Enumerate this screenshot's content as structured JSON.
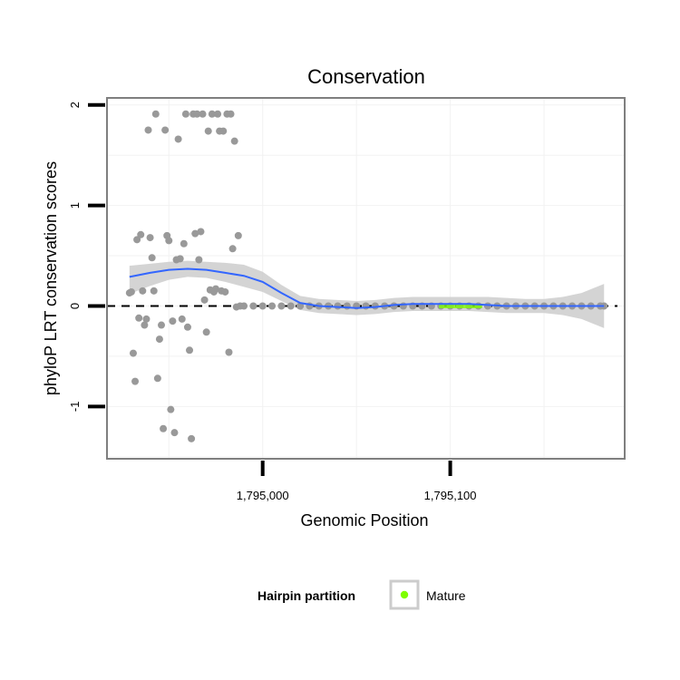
{
  "chart_data": {
    "type": "scatter",
    "title": "Conservation",
    "xlabel": "Genomic Position",
    "ylabel": "phyloP LRT conservation scores",
    "xlim": [
      1794917,
      1795193
    ],
    "ylim": [
      -1.52,
      2.07
    ],
    "x_ticks": [
      {
        "value": 1795000,
        "label": "1,795,000"
      },
      {
        "value": 1795100,
        "label": "1,795,100"
      }
    ],
    "y_ticks": [
      {
        "value": -1,
        "label": "-1"
      },
      {
        "value": 0,
        "label": "0"
      },
      {
        "value": 1,
        "label": "1"
      },
      {
        "value": 2,
        "label": "2"
      }
    ],
    "reference_line": {
      "y": 0,
      "style": "dashed",
      "color": "#000000"
    },
    "point_color": "#999999",
    "smooth_color": "#3366ff",
    "ribbon_color": "#cccccc",
    "mature_color": "#7fff00",
    "points": [
      [
        1794929,
        0.13
      ],
      [
        1794930,
        0.14
      ],
      [
        1794931,
        -0.47
      ],
      [
        1794932,
        -0.75
      ],
      [
        1794933,
        0.66
      ],
      [
        1794934,
        -0.12
      ],
      [
        1794935,
        0.71
      ],
      [
        1794936,
        0.15
      ],
      [
        1794937,
        -0.19
      ],
      [
        1794938,
        -0.13
      ],
      [
        1794939,
        1.75
      ],
      [
        1794940,
        0.68
      ],
      [
        1794941,
        0.48
      ],
      [
        1794942,
        0.15
      ],
      [
        1794943,
        1.91
      ],
      [
        1794944,
        -0.72
      ],
      [
        1794945,
        -0.33
      ],
      [
        1794946,
        -0.19
      ],
      [
        1794947,
        -1.22
      ],
      [
        1794948,
        1.75
      ],
      [
        1794949,
        0.7
      ],
      [
        1794950,
        0.65
      ],
      [
        1794951,
        -1.03
      ],
      [
        1794952,
        -0.15
      ],
      [
        1794953,
        -1.26
      ],
      [
        1794954,
        0.46
      ],
      [
        1794955,
        1.66
      ],
      [
        1794956,
        0.47
      ],
      [
        1794957,
        -0.13
      ],
      [
        1794958,
        0.62
      ],
      [
        1794959,
        1.91
      ],
      [
        1794960,
        -0.21
      ],
      [
        1794961,
        -0.44
      ],
      [
        1794962,
        -1.32
      ],
      [
        1794963,
        1.91
      ],
      [
        1794964,
        0.72
      ],
      [
        1794965,
        1.91
      ],
      [
        1794966,
        0.46
      ],
      [
        1794967,
        0.74
      ],
      [
        1794968,
        1.91
      ],
      [
        1794969,
        0.06
      ],
      [
        1794970,
        -0.26
      ],
      [
        1794971,
        1.74
      ],
      [
        1794972,
        0.16
      ],
      [
        1794973,
        1.91
      ],
      [
        1794974,
        0.14
      ],
      [
        1794975,
        0.17
      ],
      [
        1794976,
        1.91
      ],
      [
        1794977,
        1.74
      ],
      [
        1794978,
        0.15
      ],
      [
        1794979,
        1.74
      ],
      [
        1794980,
        0.14
      ],
      [
        1794981,
        1.91
      ],
      [
        1794982,
        -0.46
      ],
      [
        1794983,
        1.91
      ],
      [
        1794984,
        0.57
      ],
      [
        1794985,
        1.64
      ],
      [
        1794986,
        -0.01
      ],
      [
        1794987,
        0.7
      ],
      [
        1794988,
        0.0
      ],
      [
        1794990,
        0.0
      ],
      [
        1794995,
        0.0
      ],
      [
        1795000,
        0.0
      ],
      [
        1795005,
        0.0
      ],
      [
        1795010,
        0.0
      ],
      [
        1795015,
        0.0
      ],
      [
        1795020,
        0.0
      ],
      [
        1795025,
        0.0
      ],
      [
        1795030,
        0.0
      ],
      [
        1795035,
        0.0
      ],
      [
        1795040,
        0.0
      ],
      [
        1795045,
        0.0
      ],
      [
        1795050,
        0.0
      ],
      [
        1795055,
        0.0
      ],
      [
        1795060,
        0.0
      ],
      [
        1795065,
        0.0
      ],
      [
        1795070,
        0.0
      ],
      [
        1795075,
        0.0
      ],
      [
        1795080,
        0.0
      ],
      [
        1795085,
        0.0
      ],
      [
        1795090,
        0.0
      ],
      [
        1795095,
        0.0
      ],
      [
        1795100,
        0.0
      ],
      [
        1795105,
        0.0
      ],
      [
        1795110,
        0.0
      ],
      [
        1795115,
        0.0
      ],
      [
        1795120,
        0.0
      ],
      [
        1795125,
        0.0
      ],
      [
        1795130,
        0.0
      ],
      [
        1795135,
        0.0
      ],
      [
        1795140,
        0.0
      ],
      [
        1795145,
        0.0
      ],
      [
        1795150,
        0.0
      ],
      [
        1795155,
        0.0
      ],
      [
        1795160,
        0.0
      ],
      [
        1795165,
        0.0
      ],
      [
        1795170,
        0.0
      ],
      [
        1795175,
        0.0
      ],
      [
        1795180,
        0.0
      ],
      [
        1795182,
        0.0
      ]
    ],
    "mature_range": [
      1795094,
      1795117
    ],
    "smooth_line": [
      [
        1794929,
        0.29
      ],
      [
        1794940,
        0.33
      ],
      [
        1794950,
        0.36
      ],
      [
        1794960,
        0.37
      ],
      [
        1794970,
        0.36
      ],
      [
        1794980,
        0.33
      ],
      [
        1794990,
        0.3
      ],
      [
        1795000,
        0.24
      ],
      [
        1795010,
        0.13
      ],
      [
        1795020,
        0.03
      ],
      [
        1795030,
        0.0
      ],
      [
        1795040,
        -0.01
      ],
      [
        1795050,
        -0.02
      ],
      [
        1795060,
        -0.01
      ],
      [
        1795070,
        0.01
      ],
      [
        1795080,
        0.02
      ],
      [
        1795090,
        0.02
      ],
      [
        1795100,
        0.02
      ],
      [
        1795110,
        0.02
      ],
      [
        1795120,
        0.01
      ],
      [
        1795130,
        0.0
      ],
      [
        1795140,
        0.0
      ],
      [
        1795150,
        0.0
      ],
      [
        1795160,
        0.0
      ],
      [
        1795170,
        0.0
      ],
      [
        1795182,
        0.0
      ]
    ],
    "ribbon_upper": [
      [
        1794929,
        0.4
      ],
      [
        1794940,
        0.42
      ],
      [
        1794950,
        0.44
      ],
      [
        1794960,
        0.45
      ],
      [
        1794970,
        0.44
      ],
      [
        1794980,
        0.43
      ],
      [
        1794990,
        0.41
      ],
      [
        1795000,
        0.34
      ],
      [
        1795010,
        0.21
      ],
      [
        1795020,
        0.1
      ],
      [
        1795030,
        0.07
      ],
      [
        1795040,
        0.06
      ],
      [
        1795050,
        0.05
      ],
      [
        1795060,
        0.06
      ],
      [
        1795070,
        0.08
      ],
      [
        1795080,
        0.09
      ],
      [
        1795090,
        0.09
      ],
      [
        1795100,
        0.09
      ],
      [
        1795110,
        0.09
      ],
      [
        1795120,
        0.09
      ],
      [
        1795130,
        0.08
      ],
      [
        1795140,
        0.07
      ],
      [
        1795150,
        0.07
      ],
      [
        1795160,
        0.09
      ],
      [
        1795170,
        0.13
      ],
      [
        1795182,
        0.22
      ]
    ],
    "ribbon_lower": [
      [
        1794929,
        0.12
      ],
      [
        1794940,
        0.2
      ],
      [
        1794950,
        0.26
      ],
      [
        1794960,
        0.29
      ],
      [
        1794970,
        0.28
      ],
      [
        1794980,
        0.24
      ],
      [
        1794990,
        0.19
      ],
      [
        1795000,
        0.14
      ],
      [
        1795010,
        0.05
      ],
      [
        1795020,
        -0.04
      ],
      [
        1795030,
        -0.07
      ],
      [
        1795040,
        -0.08
      ],
      [
        1795050,
        -0.09
      ],
      [
        1795060,
        -0.08
      ],
      [
        1795070,
        -0.06
      ],
      [
        1795080,
        -0.05
      ],
      [
        1795090,
        -0.05
      ],
      [
        1795100,
        -0.05
      ],
      [
        1795110,
        -0.05
      ],
      [
        1795120,
        -0.06
      ],
      [
        1795130,
        -0.07
      ],
      [
        1795140,
        -0.07
      ],
      [
        1795150,
        -0.07
      ],
      [
        1795160,
        -0.09
      ],
      [
        1795170,
        -0.13
      ],
      [
        1795182,
        -0.22
      ]
    ],
    "legend": {
      "title": "Hairpin partition",
      "label": "Mature",
      "position": "bottom"
    }
  }
}
